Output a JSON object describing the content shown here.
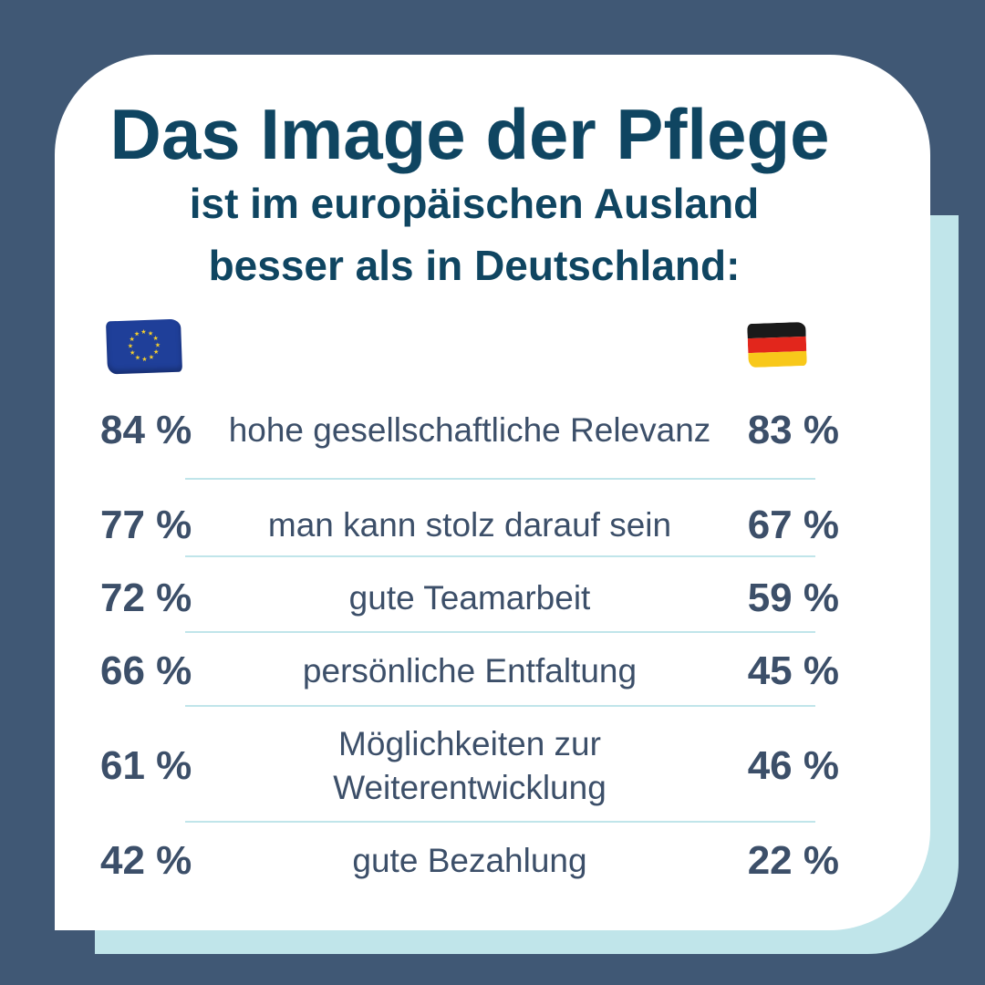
{
  "header": {
    "title": "Das Image der Pflege",
    "subtitle_line1_prefix": "ist im ",
    "subtitle_line1_highlight": "europäischen Ausland",
    "subtitle_line2_prefix": "besser als in ",
    "subtitle_line2_highlight": "Deutschland:"
  },
  "icons": {
    "left_flag": "eu-flag-icon",
    "right_flag": "germany-flag-icon"
  },
  "colors": {
    "background": "#405875",
    "card": "#ffffff",
    "accent": "#c0e5ea",
    "title": "#0f4561",
    "text": "#3c4f69"
  },
  "chart_data": {
    "type": "table",
    "columns": [
      "",
      "",
      ""
    ],
    "rows": [
      {
        "eu": "84 %",
        "label": "hohe gesellschaftliche Relevanz",
        "de": "83 %"
      },
      {
        "eu": "77 %",
        "label": "man kann stolz darauf sein",
        "de": "67 %"
      },
      {
        "eu": "72 %",
        "label": "gute Teamarbeit",
        "de": "59 %"
      },
      {
        "eu": "66 %",
        "label": "persönliche Entfaltung",
        "de": "45 %"
      },
      {
        "eu": "61 %",
        "label": "Möglichkeiten zur Weiterentwicklung",
        "de": "46 %"
      },
      {
        "eu": "42 %",
        "label": "gute Bezahlung",
        "de": "22 %"
      }
    ]
  }
}
